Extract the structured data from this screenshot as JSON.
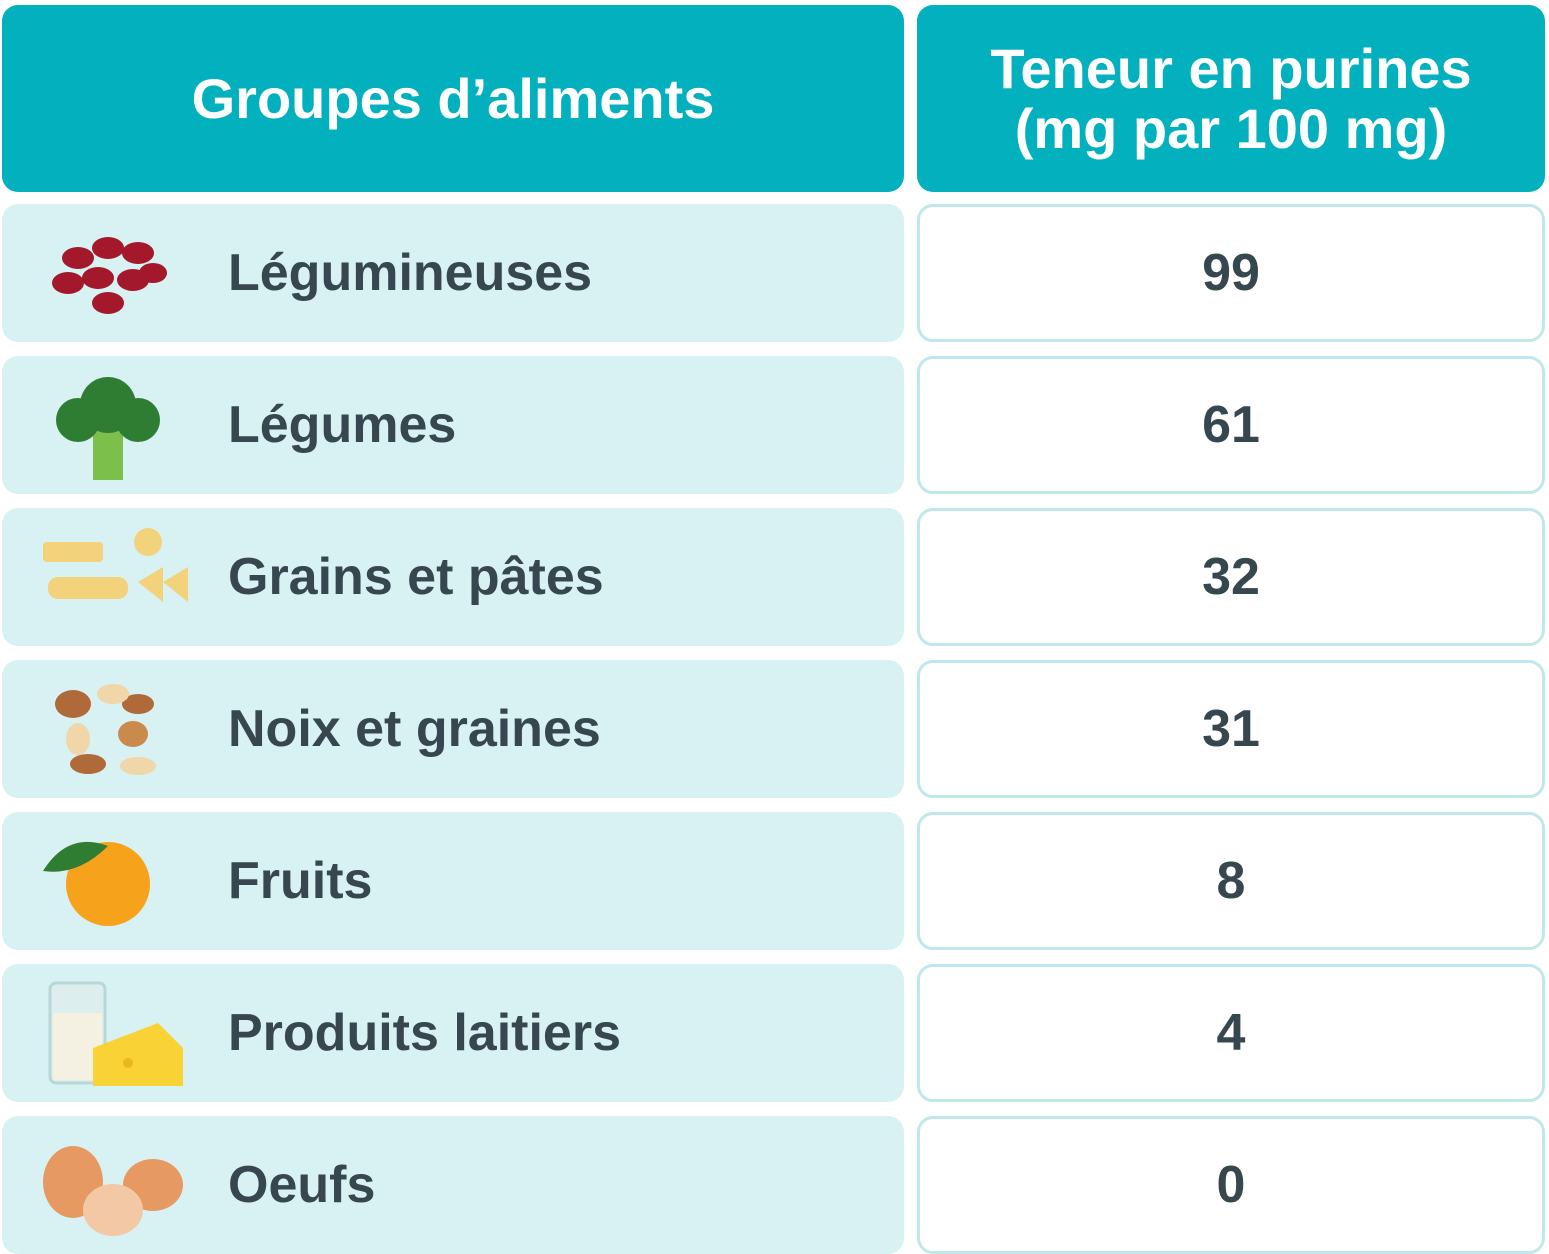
{
  "header": [
    "Groupes d’aliments",
    "Teneur en purines (mg par 100 mg)"
  ],
  "rows": [
    [
      "Légumineuses",
      99
    ],
    [
      "Légumes",
      61
    ],
    [
      "Grains et pâtes",
      32
    ],
    [
      "Noix et graines",
      31
    ],
    [
      "Fruits",
      8
    ],
    [
      "Produits laitiers",
      4
    ],
    [
      "Oeufs",
      0
    ]
  ]
}
